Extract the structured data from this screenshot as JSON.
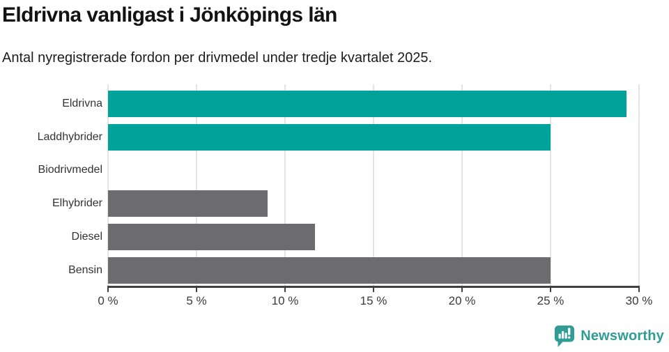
{
  "header": {
    "title": "Eldrivna vanligast i Jönköpings län",
    "subtitle": "Antal nyregistrerade fordon per drivmedel under tredje kvartalet 2025."
  },
  "chart_data": {
    "type": "bar",
    "orientation": "horizontal",
    "title": "Eldrivna vanligast i Jönköpings län",
    "subtitle": "Antal nyregistrerade fordon per drivmedel under tredje kvartalet 2025.",
    "categories": [
      "Eldrivna",
      "Laddhybrider",
      "Biodrivmedel",
      "Elhybrider",
      "Diesel",
      "Bensin"
    ],
    "values": [
      29.3,
      25.0,
      0,
      9.0,
      11.7,
      25.0
    ],
    "unit": "%",
    "xlim": [
      0,
      30
    ],
    "x_ticks": [
      0,
      5,
      10,
      15,
      20,
      25,
      30
    ],
    "x_tick_labels": [
      "0 %",
      "5 %",
      "10 %",
      "15 %",
      "20 %",
      "25 %",
      "30 %"
    ],
    "bar_colors": [
      "#00a39a",
      "#00a39a",
      "#6b6b70",
      "#6b6b70",
      "#6b6b70",
      "#6b6b70"
    ],
    "highlight_color": "#00a39a",
    "default_color": "#6b6b70",
    "grid": true,
    "legend": "none"
  },
  "footer": {
    "brand": "Newsworthy",
    "brand_color": "#2f9c96",
    "logo_icon": "bar-chart-speech-bubble-icon"
  }
}
